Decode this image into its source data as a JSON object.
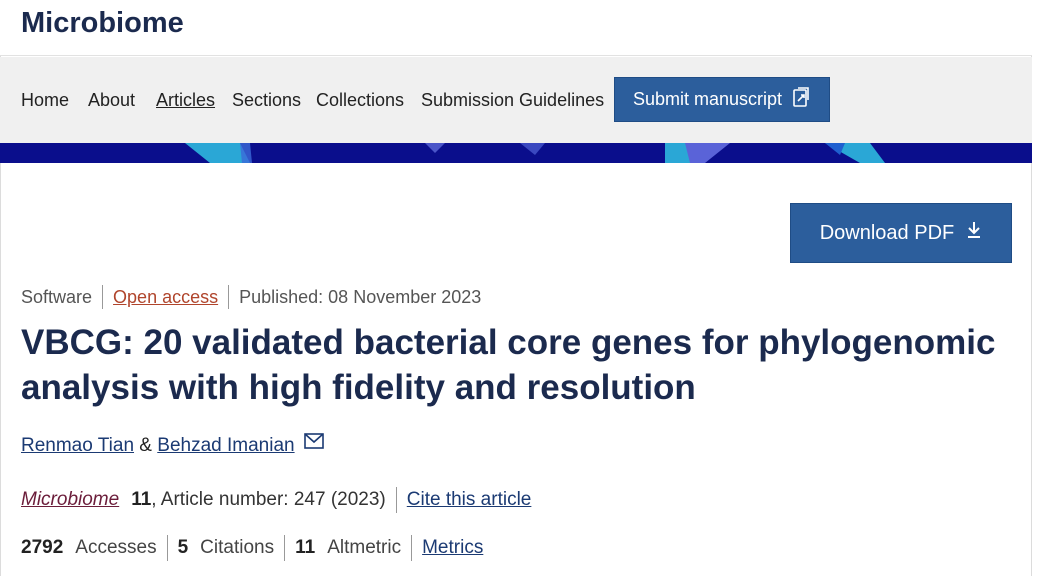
{
  "brand": {
    "name": "Microbiome"
  },
  "nav": {
    "items": [
      "Home",
      "About",
      "Articles",
      "Sections",
      "Collections",
      "Submission Guidelines"
    ],
    "active": "Articles",
    "submit_label": "Submit manuscript"
  },
  "article": {
    "download_label": "Download PDF",
    "type": "Software",
    "access": "Open access",
    "published": "Published: 08 November 2023",
    "title": "VBCG: 20 validated bacterial core genes for phylogenomic analysis with high fidelity and resolution",
    "authors": [
      "Renmao Tian",
      "Behzad Imanian"
    ],
    "author_joiner": "&",
    "journal": "Microbiome",
    "volume": "11",
    "article_number": ", Article number: 247 (2023)",
    "cite_label": "Cite this article"
  },
  "metrics": {
    "accesses_value": "2792",
    "accesses_label": "Accesses",
    "citations_value": "5",
    "citations_label": "Citations",
    "altmetric_value": "11",
    "altmetric_label": "Altmetric",
    "metrics_link": "Metrics"
  },
  "colors": {
    "brand": "#1b2a4e",
    "button": "#2c5e9c",
    "banner": "#0a0e8c",
    "accent_oa": "#b0452c"
  },
  "icons": {
    "submit": "external-document-icon",
    "download": "download-arrow-icon",
    "mail": "mail-icon"
  }
}
